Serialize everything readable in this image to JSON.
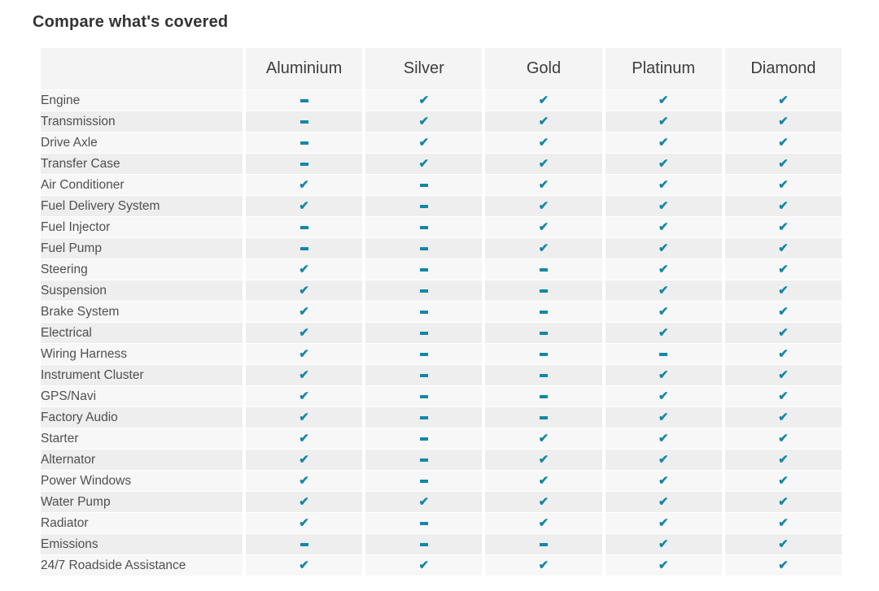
{
  "page": {
    "title": "Compare what's covered"
  },
  "colors": {
    "accent": "#1287a8",
    "header_bg": "#f4f4f4",
    "row_odd_bg": "#f7f7f7",
    "row_even_bg": "#eeeeee",
    "title_color": "#333333",
    "label_color": "#4f4f4f"
  },
  "icons": {
    "covered": "check-icon",
    "not_covered": "dash-icon",
    "check_glyph": "✔"
  },
  "table": {
    "columns": [
      "Aluminium",
      "Silver",
      "Gold",
      "Platinum",
      "Diamond"
    ],
    "rows": [
      {
        "label": "Engine",
        "values": [
          "dash",
          "check",
          "check",
          "check",
          "check"
        ]
      },
      {
        "label": "Transmission",
        "values": [
          "dash",
          "check",
          "check",
          "check",
          "check"
        ]
      },
      {
        "label": "Drive Axle",
        "values": [
          "dash",
          "check",
          "check",
          "check",
          "check"
        ]
      },
      {
        "label": "Transfer Case",
        "values": [
          "dash",
          "check",
          "check",
          "check",
          "check"
        ]
      },
      {
        "label": "Air Conditioner",
        "values": [
          "check",
          "dash",
          "check",
          "check",
          "check"
        ]
      },
      {
        "label": "Fuel Delivery System",
        "values": [
          "check",
          "dash",
          "check",
          "check",
          "check"
        ]
      },
      {
        "label": "Fuel Injector",
        "values": [
          "dash",
          "dash",
          "check",
          "check",
          "check"
        ]
      },
      {
        "label": "Fuel Pump",
        "values": [
          "dash",
          "dash",
          "check",
          "check",
          "check"
        ]
      },
      {
        "label": "Steering",
        "values": [
          "check",
          "dash",
          "dash",
          "check",
          "check"
        ]
      },
      {
        "label": "Suspension",
        "values": [
          "check",
          "dash",
          "dash",
          "check",
          "check"
        ]
      },
      {
        "label": "Brake System",
        "values": [
          "check",
          "dash",
          "dash",
          "check",
          "check"
        ]
      },
      {
        "label": "Electrical",
        "values": [
          "check",
          "dash",
          "dash",
          "check",
          "check"
        ]
      },
      {
        "label": "Wiring Harness",
        "values": [
          "check",
          "dash",
          "dash",
          "dash",
          "check"
        ]
      },
      {
        "label": "Instrument Cluster",
        "values": [
          "check",
          "dash",
          "dash",
          "check",
          "check"
        ]
      },
      {
        "label": "GPS/Navi",
        "values": [
          "check",
          "dash",
          "dash",
          "check",
          "check"
        ]
      },
      {
        "label": "Factory Audio",
        "values": [
          "check",
          "dash",
          "dash",
          "check",
          "check"
        ]
      },
      {
        "label": "Starter",
        "values": [
          "check",
          "dash",
          "check",
          "check",
          "check"
        ]
      },
      {
        "label": "Alternator",
        "values": [
          "check",
          "dash",
          "check",
          "check",
          "check"
        ]
      },
      {
        "label": "Power Windows",
        "values": [
          "check",
          "dash",
          "check",
          "check",
          "check"
        ]
      },
      {
        "label": "Water Pump",
        "values": [
          "check",
          "check",
          "check",
          "check",
          "check"
        ]
      },
      {
        "label": "Radiator",
        "values": [
          "check",
          "dash",
          "check",
          "check",
          "check"
        ]
      },
      {
        "label": "Emissions",
        "values": [
          "dash",
          "dash",
          "dash",
          "check",
          "check"
        ]
      },
      {
        "label": "24/7 Roadside Assistance",
        "values": [
          "check",
          "check",
          "check",
          "check",
          "check"
        ]
      }
    ]
  }
}
